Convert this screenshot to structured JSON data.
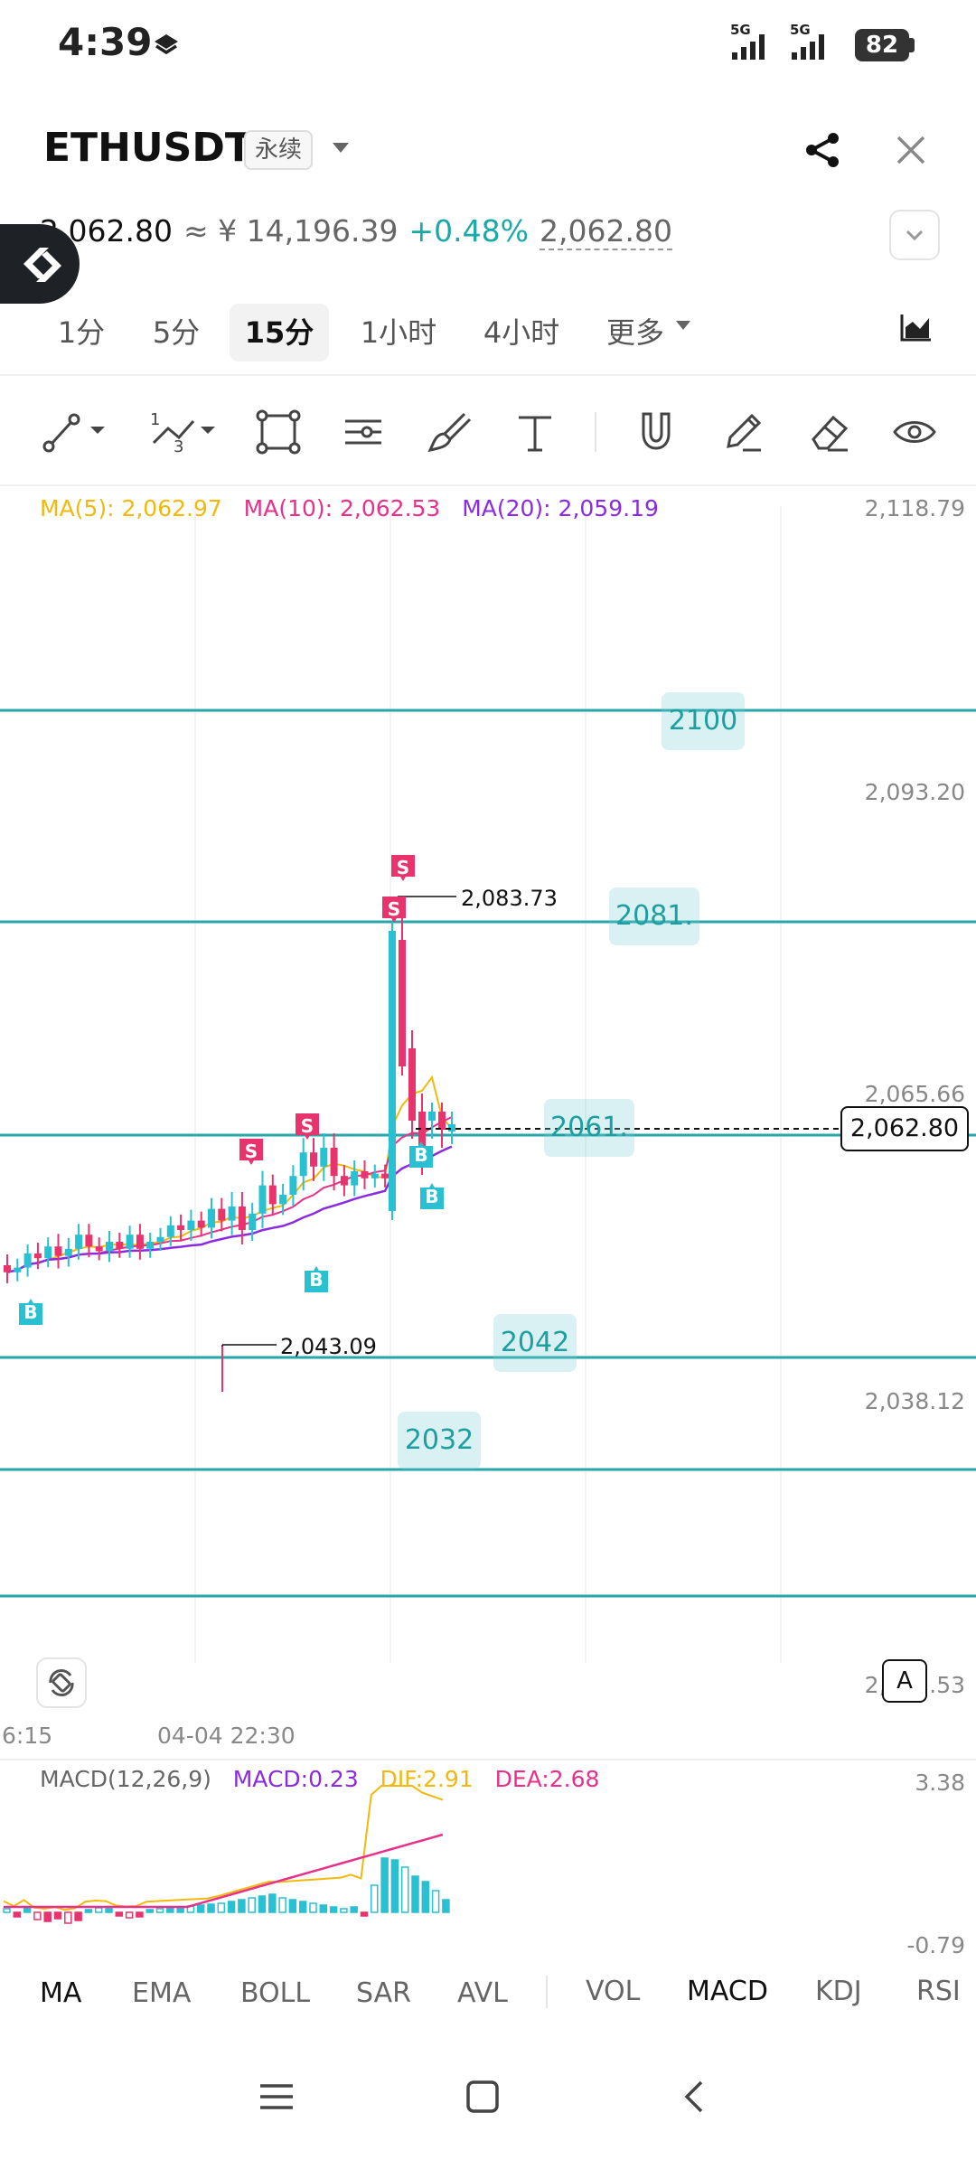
{
  "status_bar": {
    "time": "4:39",
    "network1": "5G",
    "network2": "5G",
    "battery": "82"
  },
  "header": {
    "symbol": "ETHUSDT",
    "contract_type": "永续"
  },
  "price": {
    "last": "2,062.80",
    "cny": "≈ ¥ 14,196.39",
    "change": "+0.48%",
    "mark": "2,062.80"
  },
  "timeframes": [
    "1分",
    "5分",
    "15分",
    "1小时",
    "4小时",
    "更多"
  ],
  "active_timeframe": "15分",
  "ma_legend": {
    "ma5": "MA(5): 2,062.97",
    "ma10": "MA(10): 2,062.53",
    "ma20": "MA(20): 2,059.19"
  },
  "colors": {
    "ma5": "#f0b90b",
    "ma10": "#e8308a",
    "ma20": "#8a2be2",
    "up": "#29c0d2",
    "down": "#e8336c",
    "hline": "#26a6ab"
  },
  "price_axis": [
    "2,118.79",
    "2,093.20",
    "2,065.66",
    "2,038.12",
    "2,012.53"
  ],
  "hlines": [
    "2100",
    "2081.",
    "2061.",
    "2042",
    "2032"
  ],
  "high_label": "2,083.73",
  "low_label": "2,043.09",
  "current_price": "2,062.80",
  "auto_label": "A",
  "time_axis": [
    "6:15",
    "04-04 22:30"
  ],
  "macd_legend": {
    "name": "MACD(12,26,9)",
    "macd": "MACD:0.23",
    "dif": "DIF:2.91",
    "dea": "DEA:2.68"
  },
  "macd_axis": [
    "3.38",
    "-0.79"
  ],
  "overlay_tabs": [
    "MA",
    "EMA",
    "BOLL",
    "SAR",
    "AVL"
  ],
  "sub_tabs": [
    "VOL",
    "MACD",
    "KDJ",
    "RSI"
  ],
  "markers": {
    "sell": "S",
    "buy": "B"
  }
}
